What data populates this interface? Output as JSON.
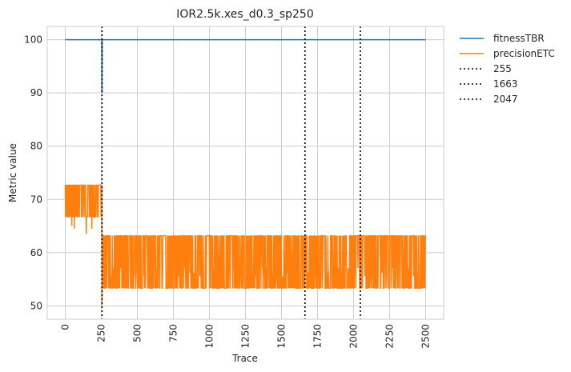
{
  "chart_data": {
    "type": "line",
    "title": "IOR2.5k.xes_d0.3_sp250",
    "xlabel": "Trace",
    "ylabel": "Metric value",
    "xlim": [
      -125,
      2625
    ],
    "ylim": [
      47.5,
      102.5
    ],
    "xticks": [
      0,
      250,
      500,
      750,
      1000,
      1250,
      1500,
      1750,
      2000,
      2250,
      2500
    ],
    "yticks": [
      50,
      60,
      70,
      80,
      90,
      100
    ],
    "grid": true,
    "legend_position": "outside-right-top",
    "series": [
      {
        "name": "fitnessTBR",
        "color": "#1f77b4",
        "points": [
          [
            0,
            100
          ],
          [
            254,
            100
          ],
          [
            255,
            90
          ],
          [
            256,
            100
          ],
          [
            2500,
            100
          ]
        ]
      },
      {
        "name": "precisionETC",
        "color": "#ff7f0e",
        "pattern": {
          "segment1": {
            "x_range": [
              0,
              254
            ],
            "low": 66.7,
            "high": 72.7,
            "dips": [
              65,
              64.5,
              66,
              63.5
            ]
          },
          "drop": {
            "x": 255,
            "value": 50
          },
          "segment2": {
            "x_range": [
              256,
              2500
            ],
            "low": 53.3,
            "high": 63.2,
            "mid_values": [
              56.2,
              57.1,
              55.6
            ]
          }
        }
      }
    ],
    "vlines": [
      {
        "name": "255",
        "x": 255,
        "style": "dotted",
        "color": "#000000"
      },
      {
        "name": "1663",
        "x": 1663,
        "style": "dotted",
        "color": "#000000"
      },
      {
        "name": "2047",
        "x": 2047,
        "style": "dotted",
        "color": "#000000"
      }
    ]
  }
}
